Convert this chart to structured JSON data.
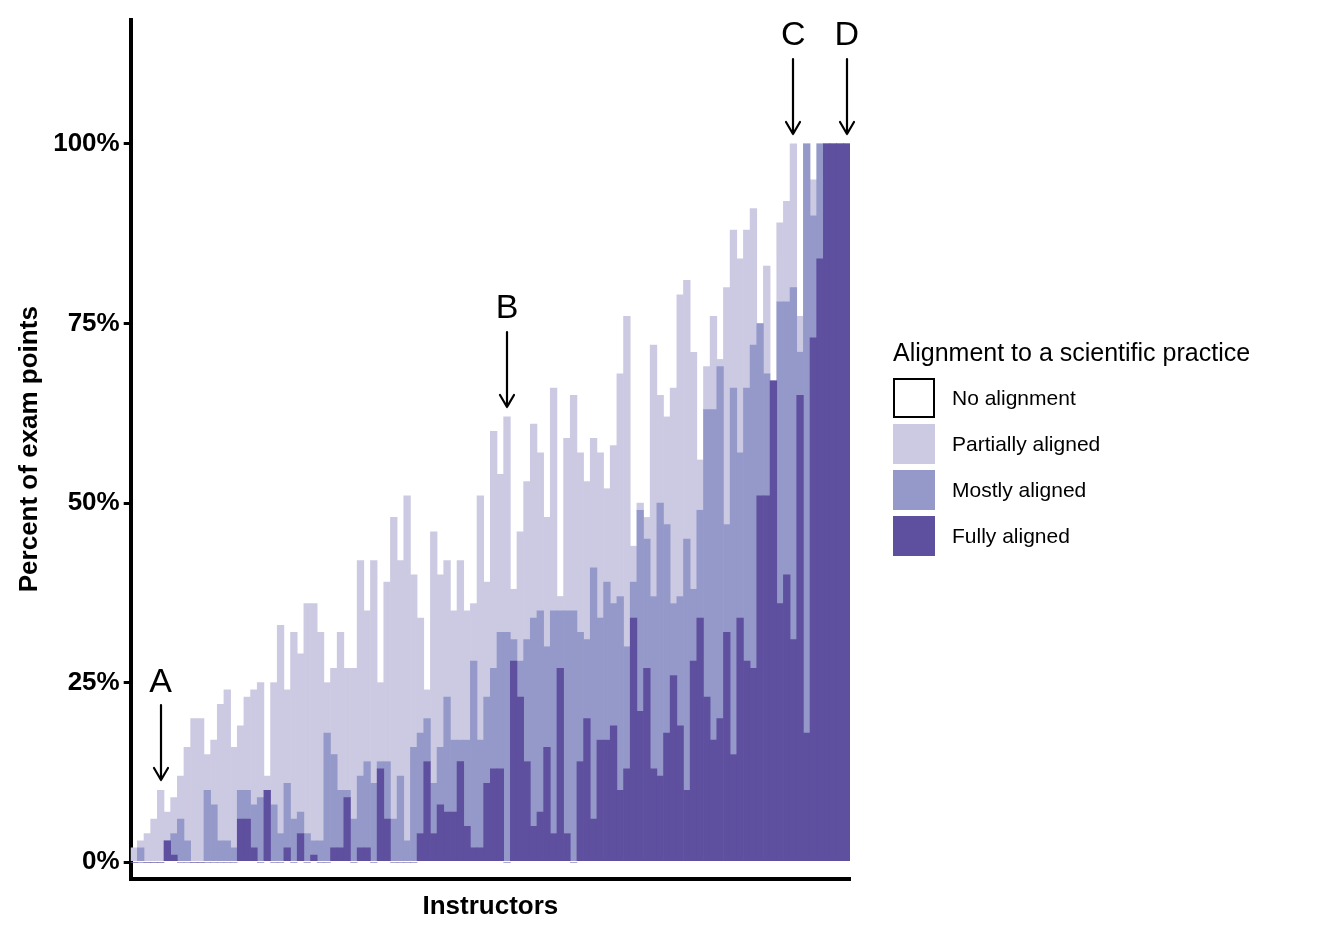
{
  "chart_data": {
    "type": "bar",
    "stacked": true,
    "xlabel": "Instructors",
    "ylabel": "Percent of exam points",
    "legend_title": "Alignment to a scientific practice",
    "legend": "right",
    "tick_labels": "y",
    "categories": [
      null,
      null,
      null,
      null,
      null,
      null,
      null,
      null,
      null,
      null,
      null,
      null,
      null,
      null,
      null,
      null,
      null,
      null,
      null,
      null,
      null,
      null,
      null,
      null,
      null,
      null,
      null,
      null,
      null,
      null,
      null,
      null,
      null,
      null,
      null,
      null,
      null,
      null,
      null,
      null,
      null,
      null,
      null,
      null,
      null,
      null,
      null,
      null,
      null,
      null,
      null,
      null,
      null,
      null,
      null,
      null,
      null,
      null,
      null,
      null,
      null,
      null,
      null,
      null,
      null,
      null,
      null,
      null,
      null,
      null,
      null,
      null,
      null,
      null,
      null,
      null,
      null,
      null,
      null,
      null,
      null,
      null,
      null,
      null,
      null,
      null,
      null,
      null,
      null,
      null,
      null,
      null,
      null,
      null,
      null,
      null,
      null,
      null,
      null,
      null,
      null,
      null,
      null,
      null,
      null,
      null,
      null,
      null
    ],
    "ylim": [
      -2.3,
      117.3
    ],
    "yticks": [
      {
        "value": 0,
        "label": "0%"
      },
      {
        "value": 25,
        "label": "25%"
      },
      {
        "value": 50,
        "label": "50%"
      },
      {
        "value": 75,
        "label": "75%"
      },
      {
        "value": 100,
        "label": "100%"
      }
    ],
    "series": [
      {
        "name": "Fully aligned",
        "color": "#5e4f9f",
        "values": [
          0,
          0,
          0,
          0,
          0,
          3,
          1,
          0,
          0,
          0,
          0,
          0,
          0,
          0,
          0,
          0,
          6,
          6,
          2,
          0,
          10,
          0,
          0,
          2,
          0,
          4,
          0,
          1,
          0,
          0,
          2,
          2,
          9,
          0,
          2,
          2,
          0,
          13,
          6,
          0,
          0,
          0,
          0,
          4,
          14,
          4,
          8,
          7,
          7,
          14,
          5,
          2,
          2,
          11,
          13,
          13,
          0,
          28,
          23,
          14,
          5,
          7,
          16,
          4,
          27,
          4,
          0,
          14,
          20,
          6,
          17,
          17,
          19,
          10,
          13,
          34,
          21,
          27,
          13,
          12,
          18,
          26,
          19,
          10,
          28,
          34,
          23,
          17,
          20,
          32,
          15,
          34,
          28,
          27,
          51,
          51,
          67,
          36,
          40,
          31,
          65,
          18,
          73,
          84,
          100,
          100,
          100,
          100
        ]
      },
      {
        "name": "Mostly aligned",
        "color": "#9499c9",
        "values": [
          0,
          2,
          0,
          0,
          0,
          0,
          3,
          6,
          3,
          0,
          0,
          10,
          8,
          3,
          3,
          2,
          4,
          4,
          6,
          9,
          0,
          8,
          4,
          9,
          6,
          3,
          4,
          2,
          3,
          18,
          13,
          8,
          1,
          6,
          10,
          12,
          11,
          1,
          8,
          6,
          12,
          3,
          16,
          14,
          6,
          7,
          8,
          16,
          10,
          3,
          12,
          26,
          15,
          12,
          14,
          19,
          32,
          3,
          5,
          17,
          29,
          28,
          14,
          31,
          8,
          31,
          35,
          18,
          11,
          35,
          17,
          22,
          17,
          27,
          17,
          5,
          28,
          18,
          24,
          38,
          29,
          10,
          18,
          35,
          10,
          15,
          40,
          46,
          49,
          15,
          51,
          23,
          38,
          45,
          24,
          17,
          0,
          42,
          38,
          49,
          6,
          82,
          17,
          16,
          0,
          0,
          0,
          0
        ]
      },
      {
        "name": "Partially aligned",
        "color": "#cccae2",
        "values": [
          2,
          1,
          4,
          6,
          10,
          4,
          5,
          6,
          13,
          20,
          20,
          5,
          9,
          19,
          21,
          14,
          9,
          13,
          16,
          16,
          2,
          17,
          29,
          13,
          26,
          22,
          32,
          33,
          29,
          7,
          12,
          22,
          17,
          21,
          30,
          21,
          31,
          11,
          25,
          42,
          30,
          48,
          24,
          16,
          4,
          35,
          24,
          19,
          18,
          25,
          18,
          8,
          34,
          16,
          33,
          22,
          30,
          7,
          18,
          22,
          27,
          22,
          18,
          31,
          2,
          24,
          30,
          25,
          22,
          18,
          23,
          13,
          22,
          31,
          46,
          5,
          1,
          3,
          35,
          15,
          15,
          30,
          42,
          36,
          33,
          7,
          6,
          13,
          1,
          33,
          22,
          27,
          22,
          19,
          0,
          15,
          0,
          11,
          14,
          20,
          5,
          0,
          5,
          0,
          0,
          0,
          0,
          0
        ]
      },
      {
        "name": "No alignment",
        "color": "#ffffff",
        "values": [
          null,
          null,
          null,
          null,
          null,
          null,
          null,
          null,
          null,
          null,
          null,
          null,
          null,
          null,
          null,
          null,
          null,
          null,
          null,
          null,
          null,
          null,
          null,
          null,
          null,
          null,
          null,
          null,
          null,
          null,
          null,
          null,
          null,
          null,
          null,
          null,
          null,
          null,
          null,
          null,
          null,
          null,
          null,
          null,
          null,
          null,
          null,
          null,
          null,
          null,
          null,
          null,
          null,
          null,
          null,
          null,
          null,
          null,
          null,
          null,
          null,
          null,
          null,
          null,
          null,
          null,
          null,
          null,
          null,
          null,
          null,
          null,
          null,
          null,
          null,
          null,
          null,
          null,
          null,
          null,
          null,
          null,
          null,
          null,
          null,
          null,
          null,
          null,
          null,
          null,
          null,
          null,
          null,
          null,
          null,
          null,
          null,
          null,
          null,
          null,
          null,
          null,
          null,
          null,
          null,
          null,
          null,
          null
        ]
      }
    ],
    "annotations": [
      {
        "text": "A",
        "y": 10
      },
      {
        "text": "B",
        "y": 62
      },
      {
        "text": "C",
        "y": 100
      },
      {
        "text": "D",
        "y": 100
      }
    ]
  }
}
